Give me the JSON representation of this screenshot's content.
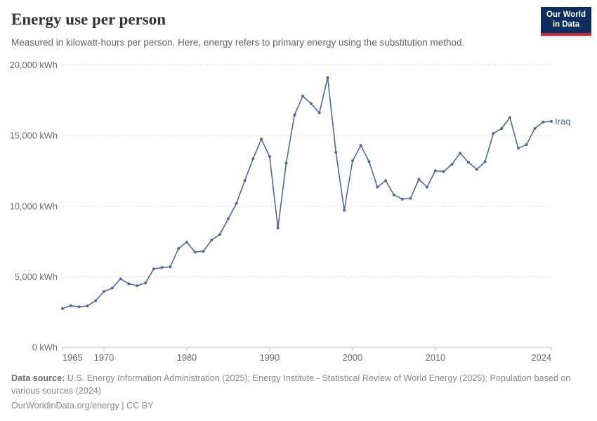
{
  "header": {
    "title": "Energy use per person",
    "subtitle": "Measured in kilowatt-hours per person. Here, energy refers to primary energy using the substitution method.",
    "logo": {
      "line1": "Our World",
      "line2": "in Data",
      "bg_color": "#0d2d5c",
      "accent_color": "#d8232a"
    }
  },
  "chart_data": {
    "type": "line",
    "title": "Energy use per person",
    "unit": "kWh",
    "ylim": [
      0,
      20000
    ],
    "yticks": [
      0,
      5000,
      10000,
      15000,
      20000
    ],
    "ytick_labels": [
      "0 kWh",
      "5,000 kWh",
      "10,000 kWh",
      "15,000 kWh",
      "20,000 kWh"
    ],
    "xticks": [
      1965,
      1970,
      1980,
      1990,
      2000,
      2010,
      2024
    ],
    "xlim": [
      1965,
      2024
    ],
    "grid": "horizontal-dashed",
    "legend_position": "end-of-line",
    "series": [
      {
        "name": "Iraq",
        "color": "#4c6a9c",
        "x": [
          1965,
          1966,
          1967,
          1968,
          1969,
          1970,
          1971,
          1972,
          1973,
          1974,
          1975,
          1976,
          1977,
          1978,
          1979,
          1980,
          1981,
          1982,
          1983,
          1984,
          1985,
          1986,
          1987,
          1988,
          1989,
          1990,
          1991,
          1992,
          1993,
          1994,
          1995,
          1996,
          1997,
          1998,
          1999,
          2000,
          2001,
          2002,
          2003,
          2004,
          2005,
          2006,
          2007,
          2008,
          2009,
          2010,
          2011,
          2012,
          2013,
          2014,
          2015,
          2016,
          2017,
          2018,
          2019,
          2020,
          2021,
          2022,
          2023,
          2024
        ],
        "values": [
          2750,
          2950,
          2870,
          2930,
          3300,
          3950,
          4200,
          4850,
          4500,
          4370,
          4550,
          5550,
          5650,
          5700,
          7000,
          7450,
          6750,
          6800,
          7600,
          8000,
          9100,
          10200,
          11800,
          13350,
          14750,
          13500,
          8450,
          13050,
          16450,
          17800,
          17250,
          16600,
          19100,
          13800,
          9700,
          13200,
          14300,
          13150,
          11350,
          11800,
          10800,
          10500,
          10550,
          11900,
          11350,
          12500,
          12450,
          12950,
          13750,
          13100,
          12600,
          13150,
          15150,
          15500,
          16270,
          14100,
          14350,
          15500,
          15950,
          16000
        ]
      }
    ]
  },
  "footer": {
    "source_label": "Data source:",
    "source_text": " U.S. Energy Information Administration (2025); Energy Institute - Statistical Review of World Energy (2025); Population based on various sources (2024)",
    "attribution": "OurWorldinData.org/energy | CC BY"
  }
}
